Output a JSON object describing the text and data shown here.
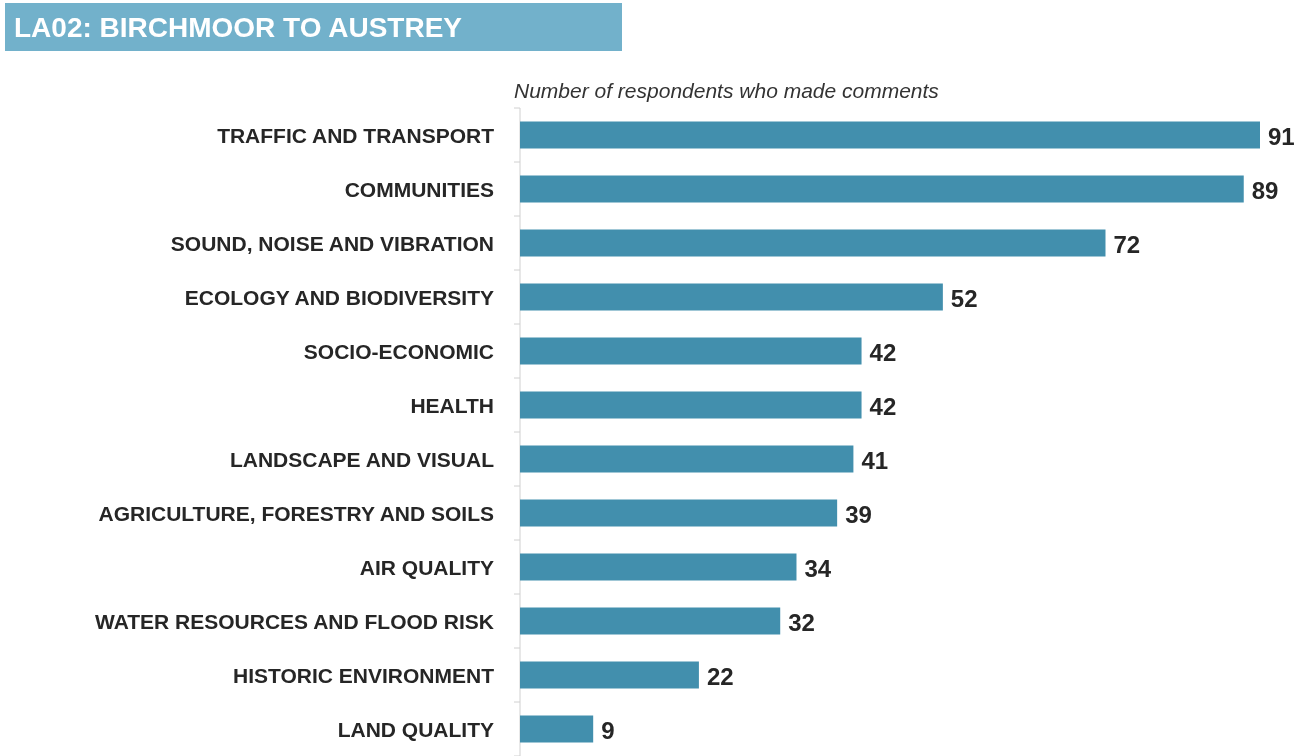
{
  "chart_data": {
    "type": "bar",
    "orientation": "horizontal",
    "title": "LA02: BIRCHMOOR TO AUSTREY",
    "subtitle": "Number of respondents who made comments",
    "categories": [
      "TRAFFIC AND TRANSPORT",
      "COMMUNITIES",
      "SOUND, NOISE AND VIBRATION",
      "ECOLOGY AND BIODIVERSITY",
      "SOCIO-ECONOMIC",
      "HEALTH",
      "LANDSCAPE AND VISUAL",
      "AGRICULTURE, FORESTRY AND SOILS",
      "AIR QUALITY",
      "WATER RESOURCES AND FLOOD RISK",
      "HISTORIC ENVIRONMENT",
      "LAND QUALITY"
    ],
    "values": [
      91,
      89,
      72,
      52,
      42,
      42,
      41,
      39,
      34,
      32,
      22,
      9
    ],
    "color": "#428fad",
    "data_labels": true
  }
}
